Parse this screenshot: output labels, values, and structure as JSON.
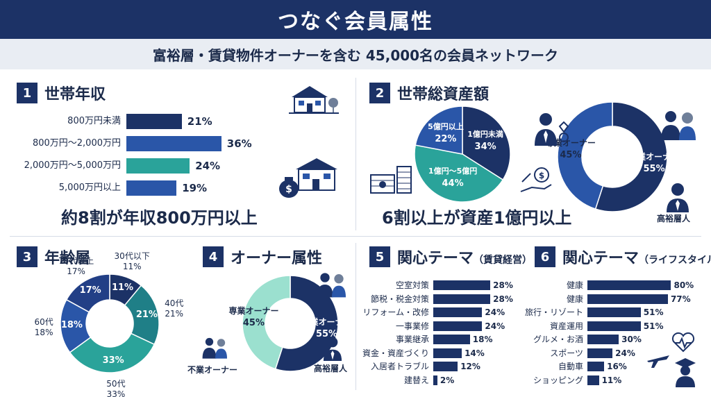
{
  "header": {
    "title": "つなぐ会員属性",
    "subtitle": "富裕層・賃貸物件オーナーを含む 45,000名の会員ネットワーク"
  },
  "colors": {
    "navy": "#1c3266",
    "blue": "#2a56a8",
    "teal": "#2aa39a",
    "teal_light": "#9be0cf",
    "highlight": "#8fd6c6"
  },
  "sections": {
    "s1": {
      "num": "1",
      "title": "世帯年収",
      "highlight": "約8割が年収800万円以上"
    },
    "s2": {
      "num": "2",
      "title": "世帯総資産額",
      "highlight": "6割以上が資産1億円以上",
      "icon_caption": "高裕層人"
    },
    "s3": {
      "num": "3",
      "title": "年齢層"
    },
    "s4": {
      "num": "4",
      "title": "オーナー属性",
      "icon_caption_left": "不業オーナー",
      "icon_caption_right": "高裕層人"
    },
    "s5": {
      "num": "5",
      "title": "関心テーマ",
      "title_suffix": "（賃貸経営）"
    },
    "s6": {
      "num": "6",
      "title": "関心テーマ",
      "title_suffix": "（ライフスタイル）"
    }
  },
  "chart_data": [
    {
      "type": "bar",
      "orientation": "horizontal",
      "categories": [
        "800万円未満",
        "800万円〜2,000万円",
        "2,000万円〜5,000万円",
        "5,000万円以上"
      ],
      "values": [
        21,
        36,
        24,
        19
      ],
      "value_labels": [
        "21%",
        "36%",
        "24%",
        "19%"
      ],
      "colors": [
        "#1c3266",
        "#2a56a8",
        "#2aa39a",
        "#2a56a8"
      ],
      "xlim": [
        0,
        40
      ]
    },
    {
      "type": "pie",
      "categories": [
        "1億円未満",
        "1億円〜5億円",
        "5億円以上"
      ],
      "values": [
        34,
        44,
        22
      ],
      "value_labels": [
        "34%",
        "44%",
        "22%"
      ],
      "colors": [
        "#1c3266",
        "#2aa39a",
        "#2a56a8"
      ]
    },
    {
      "type": "pie",
      "donut": true,
      "categories": [
        "兼業オーナー",
        "専業オーナー"
      ],
      "values": [
        55,
        45
      ],
      "value_labels": [
        "55%",
        "45%"
      ],
      "colors": [
        "#1c3266",
        "#2a56a8"
      ]
    },
    {
      "type": "pie",
      "donut": true,
      "categories": [
        "30代以下",
        "40代",
        "50代",
        "60代",
        "70代以上"
      ],
      "values": [
        11,
        21,
        33,
        18,
        17
      ],
      "value_labels": [
        "11%",
        "21%",
        "33%",
        "18%",
        "17%"
      ],
      "colors": [
        "#1c3266",
        "#1f7f87",
        "#2aa39a",
        "#2a56a8",
        "#223f86"
      ]
    },
    {
      "type": "pie",
      "donut": true,
      "categories": [
        "兼業オーナー",
        "専業オーナー"
      ],
      "values": [
        55,
        45
      ],
      "value_labels": [
        "55%",
        "45%"
      ],
      "colors": [
        "#1c3266",
        "#9be0cf"
      ]
    },
    {
      "type": "bar",
      "orientation": "horizontal",
      "categories": [
        "空室対策",
        "節税・税金対策",
        "リフォーム・改修",
        "一事業修",
        "事業継承",
        "資金・資産づくり",
        "入居者トラブル",
        "建替え"
      ],
      "values": [
        28,
        28,
        24,
        24,
        18,
        14,
        12,
        2
      ],
      "value_labels": [
        "28%",
        "28%",
        "24%",
        "24%",
        "18%",
        "14%",
        "12%",
        "2%"
      ],
      "xlim": [
        0,
        30
      ]
    },
    {
      "type": "bar",
      "orientation": "horizontal",
      "categories": [
        "健康",
        "健康",
        "旅行・リゾート",
        "資産運用",
        "グルメ・お酒",
        "スポーツ",
        "自動車",
        "ショッピング"
      ],
      "values": [
        80,
        77,
        51,
        51,
        30,
        24,
        16,
        11
      ],
      "value_labels": [
        "80%",
        "77%",
        "51%",
        "51%",
        "30%",
        "24%",
        "16%",
        "11%"
      ],
      "xlim": [
        0,
        85
      ]
    }
  ]
}
